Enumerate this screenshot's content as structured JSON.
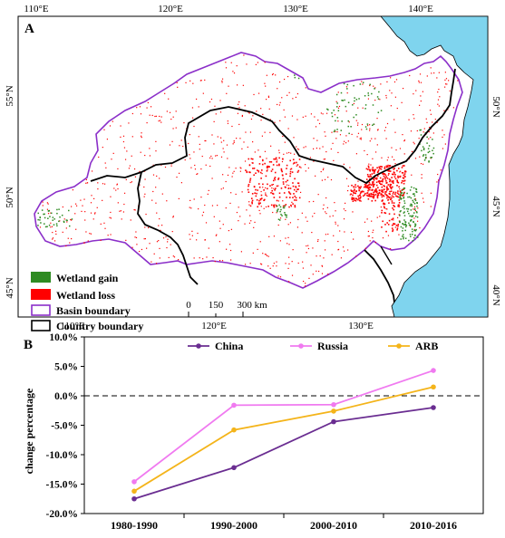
{
  "map": {
    "panel_label": "A",
    "top_lon_labels": [
      "110°E",
      "120°E",
      "130°E",
      "140°E"
    ],
    "bottom_lon_labels": [
      "110°E",
      "120°E",
      "130°E"
    ],
    "left_lat_labels": [
      "55°N",
      "50°N",
      "45°N"
    ],
    "right_lat_labels": [
      "50°N",
      "45°N",
      "40°N"
    ],
    "legend": [
      {
        "label": "Wetland gain",
        "color": "#2e8b22",
        "style": "fill"
      },
      {
        "label": "Wetland loss",
        "color": "#ff0000",
        "style": "fill"
      },
      {
        "label": "Basin boundary",
        "color": "#8b2fc9",
        "style": "outline"
      },
      {
        "label": "Country boundary",
        "color": "#000000",
        "style": "outline"
      }
    ],
    "scale_bar": {
      "ticks": [
        "0",
        "150",
        "300 km"
      ]
    },
    "colors": {
      "sea": "#7fd4ee",
      "gain": "#2e8b22",
      "loss": "#ff0000",
      "basin": "#8b2fc9",
      "country": "#000000"
    }
  },
  "chart_data": {
    "panel_label": "B",
    "type": "line",
    "categories": [
      "1980-1990",
      "1990-2000",
      "2000-2010",
      "2010-2016"
    ],
    "ylabel": "change percentage",
    "ylim": [
      -20,
      10
    ],
    "yticks": [
      "10.0%",
      "5.0%",
      "0.0%",
      "-5.0%",
      "-10.0%",
      "-15.0%",
      "-20.0%"
    ],
    "reference_line": 0,
    "legend_position": "top",
    "series": [
      {
        "name": "China",
        "color": "#6a2d91",
        "values": [
          -17.5,
          -12.2,
          -4.4,
          -2.0
        ]
      },
      {
        "name": "Russia",
        "color": "#f07af0",
        "values": [
          -14.6,
          -1.6,
          -1.5,
          4.3
        ]
      },
      {
        "name": "ARB",
        "color": "#f4b41a",
        "values": [
          -16.2,
          -5.8,
          -2.6,
          1.5
        ]
      }
    ]
  }
}
